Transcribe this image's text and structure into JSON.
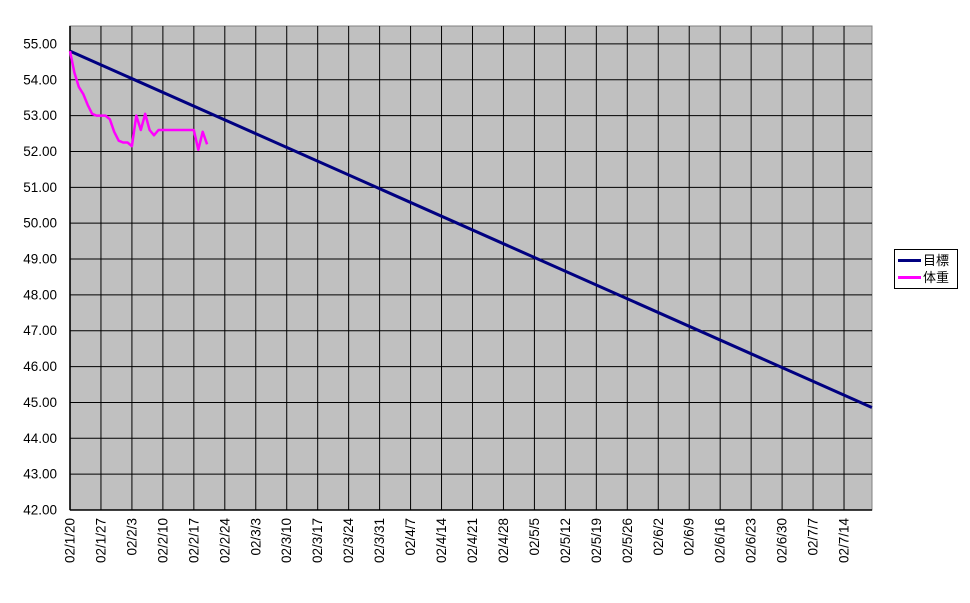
{
  "chart_data": {
    "type": "line",
    "title": "",
    "plot_bg_color": "#C0C0C0",
    "outer_bg_color": "#FFFFFF",
    "grid_color": "#000000",
    "plot_border_color": "#808080",
    "axis_line_color": "#000000",
    "grid": true,
    "x_axis": {
      "tick_labels": [
        "02/1/20",
        "02/1/27",
        "02/2/3",
        "02/2/10",
        "02/2/17",
        "02/2/24",
        "02/3/3",
        "02/3/10",
        "02/3/17",
        "02/3/24",
        "02/3/31",
        "02/4/7",
        "02/4/14",
        "02/4/21",
        "02/4/28",
        "02/5/5",
        "02/5/12",
        "02/5/19",
        "02/5/26",
        "02/6/2",
        "02/6/9",
        "02/6/16",
        "02/6/23",
        "02/6/30",
        "02/7/7",
        "02/7/14"
      ],
      "days_per_tick": 7,
      "total_days_shown": 181.3,
      "label_rotation_deg": -90
    },
    "y_axis": {
      "tick_labels": [
        "55.00",
        "54.00",
        "53.00",
        "52.00",
        "51.00",
        "50.00",
        "49.00",
        "48.00",
        "47.00",
        "46.00",
        "45.00",
        "44.00",
        "43.00",
        "42.00"
      ],
      "min": 42,
      "max": 55.5,
      "major_unit": 1
    },
    "series": [
      {
        "name": "目標",
        "color": "#000080",
        "line_width": 3,
        "shape": "linear",
        "interval": "weekly",
        "start_label": "02/1/20",
        "start_value": 54.8,
        "value_at_last_tick": 45.2,
        "value_at_right_edge": 44.86,
        "weekly_values": [
          54.8,
          54.42,
          54.03,
          53.65,
          53.26,
          52.88,
          52.5,
          52.11,
          51.73,
          51.34,
          50.96,
          50.58,
          50.19,
          49.81,
          49.42,
          49.04,
          48.66,
          48.27,
          47.89,
          47.5,
          47.12,
          46.74,
          46.35,
          45.97,
          45.58,
          45.2
        ]
      },
      {
        "name": "体重",
        "color": "#FF00FF",
        "line_width": 2.5,
        "shape": "daily-polyline",
        "interval": "daily",
        "start_label": "02/1/20",
        "end_label_approx": "02/2/20",
        "daily_values": [
          54.8,
          54.2,
          53.8,
          53.6,
          53.3,
          53.05,
          53.0,
          53.0,
          53.0,
          52.9,
          52.55,
          52.3,
          52.25,
          52.25,
          52.15,
          53.0,
          52.6,
          53.05,
          52.6,
          52.45,
          52.6,
          52.6,
          52.6,
          52.6,
          52.6,
          52.6,
          52.6,
          52.6,
          52.6,
          52.05,
          52.55,
          52.2
        ]
      }
    ],
    "legend": {
      "position": "right",
      "border_color": "#000000",
      "bg_color": "#FFFFFF"
    }
  }
}
